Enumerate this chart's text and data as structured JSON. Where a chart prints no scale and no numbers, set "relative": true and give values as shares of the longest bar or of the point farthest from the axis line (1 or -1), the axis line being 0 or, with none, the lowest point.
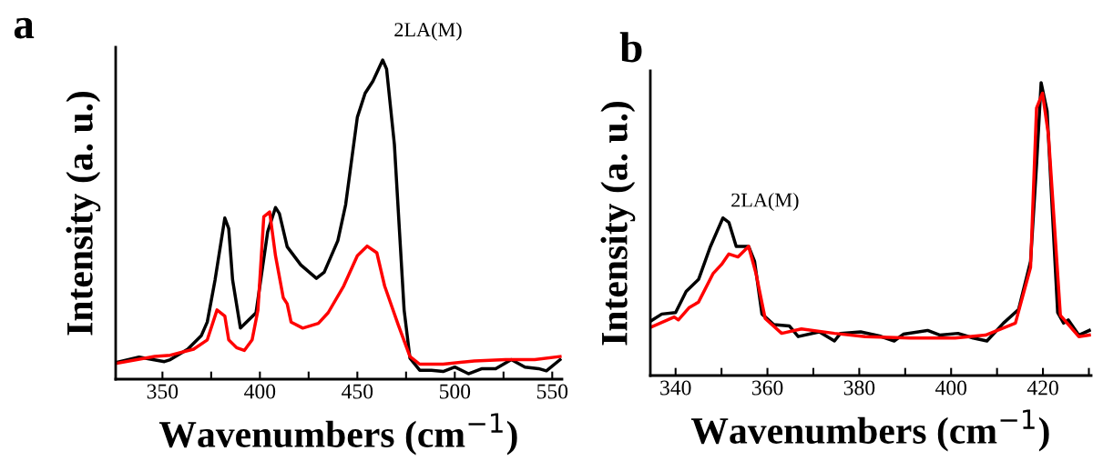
{
  "chart_data": [
    {
      "type": "line",
      "title": "a",
      "xlabel": "Wavenumbers (cm$^{−1}$)",
      "ylabel": "Intensity (a. u.)",
      "relative": true,
      "xlim": [
        326,
        555
      ],
      "xticks": [
        350,
        {
          "value": 375,
          "label": null
        },
        400,
        {
          "value": 425,
          "label": null
        },
        450,
        {
          "value": 475,
          "label": null
        },
        500,
        {
          "value": 525,
          "label": null
        },
        550
      ],
      "annotations": [
        "2LA(M)"
      ],
      "series": [
        {
          "color": "#000000",
          "x": [
            326,
            338,
            351,
            354,
            363,
            370,
            373,
            377,
            382,
            384,
            386,
            390,
            398,
            404,
            408,
            410,
            414,
            421,
            429,
            433,
            440,
            444,
            450,
            454,
            458,
            463,
            465,
            469,
            474,
            477,
            482,
            488,
            494,
            500,
            507,
            514,
            521,
            529,
            536,
            543,
            547,
            554
          ],
          "values": [
            0.052,
            0.069,
            0.055,
            0.061,
            0.094,
            0.137,
            0.179,
            0.311,
            0.505,
            0.472,
            0.311,
            0.16,
            0.208,
            0.462,
            0.538,
            0.519,
            0.415,
            0.358,
            0.316,
            0.335,
            0.434,
            0.547,
            0.821,
            0.896,
            0.934,
            1.0,
            0.972,
            0.736,
            0.217,
            0.066,
            0.028,
            0.028,
            0.024,
            0.038,
            0.017,
            0.033,
            0.033,
            0.061,
            0.038,
            0.033,
            0.026,
            0.061
          ]
        },
        {
          "color": "#ff0000",
          "x": [
            326,
            346,
            354,
            366,
            373,
            378,
            382,
            384,
            388,
            392,
            396,
            399,
            402,
            405,
            408,
            412,
            414,
            416,
            422,
            430,
            435,
            443,
            450,
            455,
            460,
            464,
            471,
            477,
            482,
            494,
            510,
            526,
            541,
            554
          ],
          "values": [
            0.049,
            0.071,
            0.075,
            0.094,
            0.123,
            0.217,
            0.198,
            0.123,
            0.099,
            0.09,
            0.123,
            0.217,
            0.509,
            0.524,
            0.387,
            0.255,
            0.236,
            0.179,
            0.16,
            0.175,
            0.208,
            0.292,
            0.387,
            0.417,
            0.396,
            0.292,
            0.17,
            0.071,
            0.047,
            0.047,
            0.057,
            0.061,
            0.061,
            0.071
          ]
        }
      ]
    },
    {
      "type": "line",
      "title": "b",
      "xlabel": "Wavenumbers (cm$^{−1}$)",
      "ylabel": "Intensity (a. u.)",
      "relative": true,
      "xlim": [
        334.5,
        430.5
      ],
      "xticks": [
        340,
        {
          "value": 350,
          "label": null
        },
        360,
        {
          "value": 370,
          "label": null
        },
        380,
        {
          "value": 390,
          "label": null
        },
        400,
        {
          "value": 410,
          "label": null
        },
        420,
        {
          "value": 430,
          "label": null
        }
      ],
      "annotations": [
        "2LA(M)"
      ],
      "series": [
        {
          "color": "#000000",
          "x": [
            334.5,
            337,
            340,
            342.3,
            345,
            347.6,
            350.3,
            351.6,
            353.2,
            355.9,
            357.2,
            358.8,
            361.4,
            364.8,
            366.7,
            371.3,
            374.6,
            375.9,
            380.3,
            384.4,
            387.6,
            389.6,
            394.9,
            397.6,
            401.5,
            404.8,
            407.8,
            411.4,
            414.7,
            417.3,
            418.6,
            419.6,
            420.9,
            423.2,
            424.5,
            425.5,
            427.8,
            430.1
          ],
          "values": [
            0.185,
            0.21,
            0.215,
            0.287,
            0.328,
            0.441,
            0.538,
            0.523,
            0.441,
            0.441,
            0.39,
            0.21,
            0.174,
            0.169,
            0.133,
            0.149,
            0.118,
            0.144,
            0.149,
            0.135,
            0.118,
            0.141,
            0.154,
            0.138,
            0.144,
            0.128,
            0.118,
            0.179,
            0.226,
            0.39,
            0.718,
            1.0,
            0.903,
            0.215,
            0.179,
            0.19,
            0.138,
            0.154
          ]
        },
        {
          "color": "#ff0000",
          "x": [
            334.5,
            339.7,
            340.6,
            342.9,
            345,
            348.2,
            350,
            351.6,
            353.6,
            355.9,
            357.5,
            359.5,
            363.1,
            367.4,
            374.6,
            381.3,
            391.1,
            400.9,
            407.5,
            414,
            417.3,
            418.6,
            419.9,
            421.2,
            423.8,
            427.8,
            430.1
          ],
          "values": [
            0.164,
            0.2,
            0.19,
            0.231,
            0.251,
            0.349,
            0.379,
            0.415,
            0.405,
            0.441,
            0.349,
            0.195,
            0.144,
            0.159,
            0.144,
            0.133,
            0.128,
            0.128,
            0.138,
            0.179,
            0.369,
            0.913,
            0.964,
            0.821,
            0.205,
            0.133,
            0.138
          ]
        }
      ]
    }
  ]
}
